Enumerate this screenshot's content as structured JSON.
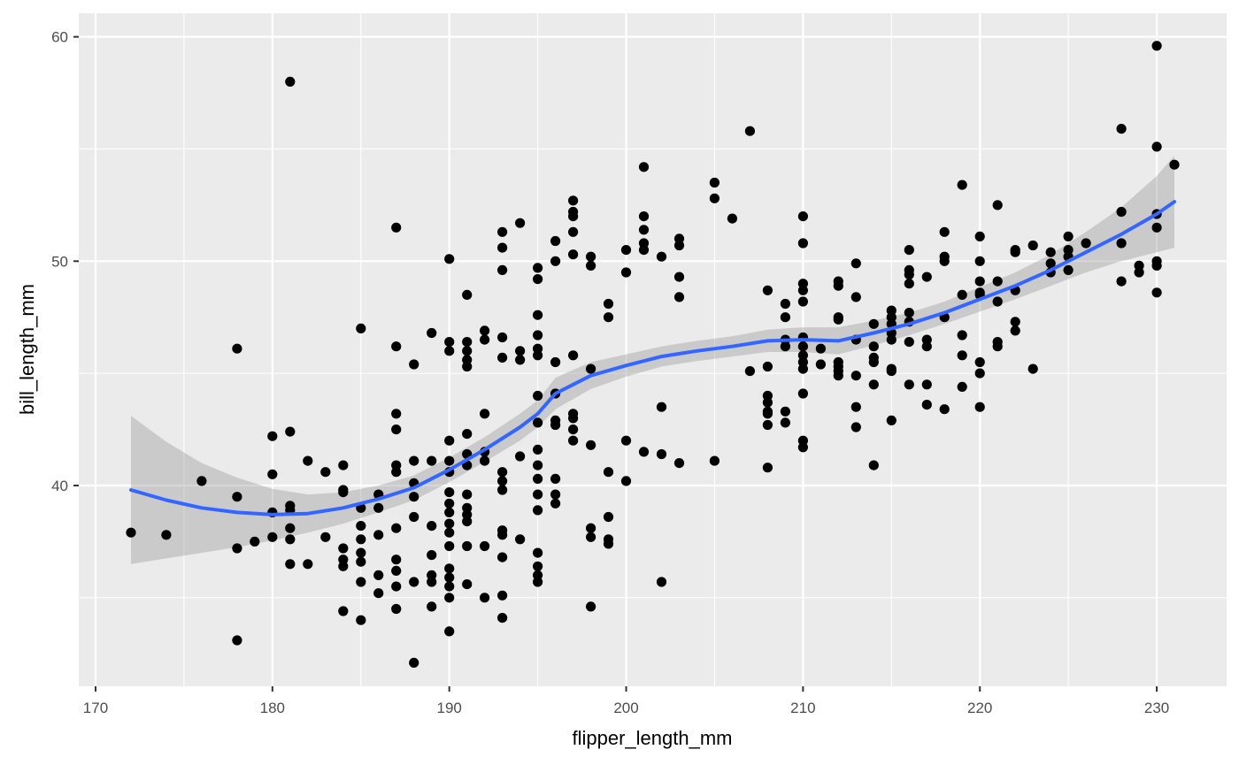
{
  "chart_data": {
    "type": "scatter",
    "xlabel": "flipper_length_mm",
    "ylabel": "bill_length_mm",
    "xlim": [
      169.05,
      233.95
    ],
    "ylim": [
      31.05,
      61.05
    ],
    "x_ticks": [
      170,
      180,
      190,
      200,
      210,
      220,
      230
    ],
    "x_tick_labels": [
      "170",
      "180",
      "190",
      "200",
      "210",
      "220",
      "230"
    ],
    "y_ticks": [
      40,
      50,
      60
    ],
    "y_tick_labels": [
      "40",
      "50",
      "60"
    ],
    "x_minor_ticks": [
      175,
      185,
      195,
      205,
      215,
      225
    ],
    "y_minor_ticks": [
      35,
      45,
      55
    ],
    "grid": true,
    "colors": {
      "panel_background": "#ebebeb",
      "grid_line": "#ffffff",
      "point": "#000000",
      "smooth_line": "#3366ff",
      "confidence_band": "#999999"
    },
    "points": [
      [
        172,
        37.9
      ],
      [
        174,
        37.8
      ],
      [
        176,
        40.2
      ],
      [
        178,
        46.1
      ],
      [
        178,
        39.5
      ],
      [
        178,
        37.2
      ],
      [
        178,
        33.1
      ],
      [
        179,
        37.5
      ],
      [
        180,
        42.2
      ],
      [
        180,
        40.5
      ],
      [
        180,
        38.8
      ],
      [
        180,
        37.7
      ],
      [
        181,
        58.0
      ],
      [
        181,
        42.4
      ],
      [
        181,
        39.1
      ],
      [
        181,
        38.9
      ],
      [
        181,
        38.1
      ],
      [
        181,
        37.6
      ],
      [
        181,
        36.5
      ],
      [
        182,
        41.1
      ],
      [
        182,
        36.5
      ],
      [
        183,
        40.6
      ],
      [
        183,
        37.7
      ],
      [
        184,
        40.9
      ],
      [
        184,
        39.8
      ],
      [
        184,
        39.7
      ],
      [
        184,
        37.2
      ],
      [
        184,
        36.7
      ],
      [
        184,
        36.4
      ],
      [
        184,
        34.4
      ],
      [
        185,
        47.0
      ],
      [
        185,
        39.0
      ],
      [
        185,
        38.2
      ],
      [
        185,
        37.6
      ],
      [
        185,
        37.0
      ],
      [
        185,
        36.6
      ],
      [
        185,
        35.7
      ],
      [
        185,
        34.0
      ],
      [
        186,
        39.6
      ],
      [
        186,
        39.0
      ],
      [
        186,
        37.8
      ],
      [
        186,
        36.0
      ],
      [
        186,
        35.2
      ],
      [
        187,
        51.5
      ],
      [
        187,
        46.2
      ],
      [
        187,
        43.2
      ],
      [
        187,
        42.5
      ],
      [
        187,
        40.9
      ],
      [
        187,
        40.6
      ],
      [
        187,
        38.1
      ],
      [
        187,
        36.7
      ],
      [
        187,
        36.2
      ],
      [
        187,
        35.5
      ],
      [
        187,
        34.5
      ],
      [
        188,
        45.4
      ],
      [
        188,
        41.1
      ],
      [
        188,
        40.1
      ],
      [
        188,
        39.5
      ],
      [
        188,
        38.6
      ],
      [
        188,
        35.7
      ],
      [
        188,
        32.1
      ],
      [
        189,
        46.8
      ],
      [
        189,
        41.1
      ],
      [
        189,
        38.2
      ],
      [
        189,
        36.9
      ],
      [
        189,
        36.0
      ],
      [
        189,
        35.7
      ],
      [
        189,
        34.6
      ],
      [
        190,
        50.1
      ],
      [
        190,
        46.4
      ],
      [
        190,
        46.0
      ],
      [
        190,
        42.0
      ],
      [
        190,
        41.1
      ],
      [
        190,
        40.6
      ],
      [
        190,
        39.7
      ],
      [
        190,
        39.2
      ],
      [
        190,
        38.8
      ],
      [
        190,
        38.3
      ],
      [
        190,
        37.9
      ],
      [
        190,
        37.3
      ],
      [
        190,
        36.3
      ],
      [
        190,
        35.9
      ],
      [
        190,
        35.5
      ],
      [
        190,
        35.0
      ],
      [
        190,
        33.5
      ],
      [
        191,
        48.5
      ],
      [
        191,
        46.4
      ],
      [
        191,
        46.0
      ],
      [
        191,
        45.6
      ],
      [
        191,
        45.3
      ],
      [
        191,
        42.3
      ],
      [
        191,
        41.4
      ],
      [
        191,
        40.9
      ],
      [
        191,
        39.6
      ],
      [
        191,
        39.0
      ],
      [
        191,
        38.7
      ],
      [
        191,
        38.4
      ],
      [
        191,
        37.3
      ],
      [
        191,
        35.6
      ],
      [
        192,
        46.9
      ],
      [
        192,
        46.5
      ],
      [
        192,
        43.2
      ],
      [
        192,
        41.5
      ],
      [
        192,
        41.1
      ],
      [
        192,
        37.3
      ],
      [
        192,
        35.0
      ],
      [
        193,
        51.3
      ],
      [
        193,
        50.6
      ],
      [
        193,
        49.6
      ],
      [
        193,
        46.6
      ],
      [
        193,
        45.7
      ],
      [
        193,
        40.6
      ],
      [
        193,
        40.2
      ],
      [
        193,
        39.8
      ],
      [
        193,
        38.0
      ],
      [
        193,
        37.8
      ],
      [
        193,
        36.8
      ],
      [
        193,
        35.1
      ],
      [
        193,
        34.1
      ],
      [
        194,
        51.7
      ],
      [
        194,
        46.0
      ],
      [
        194,
        45.6
      ],
      [
        194,
        41.3
      ],
      [
        194,
        37.6
      ],
      [
        195,
        49.7
      ],
      [
        195,
        49.2
      ],
      [
        195,
        47.6
      ],
      [
        195,
        46.7
      ],
      [
        195,
        46.1
      ],
      [
        195,
        45.8
      ],
      [
        195,
        44.0
      ],
      [
        195,
        42.8
      ],
      [
        195,
        41.6
      ],
      [
        195,
        40.9
      ],
      [
        195,
        40.3
      ],
      [
        195,
        39.6
      ],
      [
        195,
        38.9
      ],
      [
        195,
        37.0
      ],
      [
        195,
        36.4
      ],
      [
        195,
        36.0
      ],
      [
        195,
        35.7
      ],
      [
        196,
        50.9
      ],
      [
        196,
        50.0
      ],
      [
        196,
        45.5
      ],
      [
        196,
        44.1
      ],
      [
        196,
        42.9
      ],
      [
        196,
        42.7
      ],
      [
        196,
        40.3
      ],
      [
        196,
        39.6
      ],
      [
        196,
        39.2
      ],
      [
        197,
        52.7
      ],
      [
        197,
        52.2
      ],
      [
        197,
        52.0
      ],
      [
        197,
        51.3
      ],
      [
        197,
        50.3
      ],
      [
        197,
        45.8
      ],
      [
        197,
        43.2
      ],
      [
        197,
        43.0
      ],
      [
        197,
        42.5
      ],
      [
        197,
        42.0
      ],
      [
        198,
        50.2
      ],
      [
        198,
        49.8
      ],
      [
        198,
        45.2
      ],
      [
        198,
        41.8
      ],
      [
        198,
        38.1
      ],
      [
        198,
        37.7
      ],
      [
        198,
        34.6
      ],
      [
        199,
        48.1
      ],
      [
        199,
        47.5
      ],
      [
        199,
        40.6
      ],
      [
        199,
        38.6
      ],
      [
        199,
        37.6
      ],
      [
        199,
        37.4
      ],
      [
        200,
        50.5
      ],
      [
        200,
        49.5
      ],
      [
        200,
        42.0
      ],
      [
        200,
        40.2
      ],
      [
        201,
        54.2
      ],
      [
        201,
        52.0
      ],
      [
        201,
        51.4
      ],
      [
        201,
        50.8
      ],
      [
        201,
        50.5
      ],
      [
        201,
        41.5
      ],
      [
        202,
        50.2
      ],
      [
        202,
        43.5
      ],
      [
        202,
        41.4
      ],
      [
        202,
        35.7
      ],
      [
        203,
        51.0
      ],
      [
        203,
        50.7
      ],
      [
        203,
        49.3
      ],
      [
        203,
        48.4
      ],
      [
        203,
        41.0
      ],
      [
        205,
        53.5
      ],
      [
        205,
        52.8
      ],
      [
        205,
        41.1
      ],
      [
        206,
        51.9
      ],
      [
        207,
        55.8
      ],
      [
        207,
        45.1
      ],
      [
        208,
        48.7
      ],
      [
        208,
        45.3
      ],
      [
        208,
        44.0
      ],
      [
        208,
        43.7
      ],
      [
        208,
        43.3
      ],
      [
        208,
        43.2
      ],
      [
        208,
        42.7
      ],
      [
        208,
        40.8
      ],
      [
        209,
        48.1
      ],
      [
        209,
        47.5
      ],
      [
        209,
        46.5
      ],
      [
        209,
        46.2
      ],
      [
        209,
        43.3
      ],
      [
        209,
        42.8
      ],
      [
        210,
        52.0
      ],
      [
        210,
        50.8
      ],
      [
        210,
        49.0
      ],
      [
        210,
        48.7
      ],
      [
        210,
        48.2
      ],
      [
        210,
        46.6
      ],
      [
        210,
        46.2
      ],
      [
        210,
        45.8
      ],
      [
        210,
        45.5
      ],
      [
        210,
        45.2
      ],
      [
        210,
        44.1
      ],
      [
        210,
        42.0
      ],
      [
        210,
        41.7
      ],
      [
        211,
        46.1
      ],
      [
        211,
        45.4
      ],
      [
        212,
        49.1
      ],
      [
        212,
        48.9
      ],
      [
        212,
        47.5
      ],
      [
        212,
        47.4
      ],
      [
        212,
        45.5
      ],
      [
        212,
        45.3
      ],
      [
        212,
        45.1
      ],
      [
        212,
        44.9
      ],
      [
        213,
        49.9
      ],
      [
        213,
        48.4
      ],
      [
        213,
        46.5
      ],
      [
        213,
        44.9
      ],
      [
        213,
        43.5
      ],
      [
        213,
        42.6
      ],
      [
        214,
        47.2
      ],
      [
        214,
        46.2
      ],
      [
        214,
        45.7
      ],
      [
        214,
        45.5
      ],
      [
        214,
        44.5
      ],
      [
        214,
        40.9
      ],
      [
        215,
        47.8
      ],
      [
        215,
        47.5
      ],
      [
        215,
        47.2
      ],
      [
        215,
        46.8
      ],
      [
        215,
        46.5
      ],
      [
        215,
        45.2
      ],
      [
        215,
        45.1
      ],
      [
        215,
        42.9
      ],
      [
        216,
        50.5
      ],
      [
        216,
        49.6
      ],
      [
        216,
        49.4
      ],
      [
        216,
        49.0
      ],
      [
        216,
        47.7
      ],
      [
        216,
        47.3
      ],
      [
        216,
        46.4
      ],
      [
        216,
        44.5
      ],
      [
        217,
        49.3
      ],
      [
        217,
        46.5
      ],
      [
        217,
        46.2
      ],
      [
        217,
        44.5
      ],
      [
        217,
        43.6
      ],
      [
        218,
        51.3
      ],
      [
        218,
        50.2
      ],
      [
        218,
        50.0
      ],
      [
        218,
        47.5
      ],
      [
        218,
        43.4
      ],
      [
        219,
        53.4
      ],
      [
        219,
        48.5
      ],
      [
        219,
        46.7
      ],
      [
        219,
        45.8
      ],
      [
        219,
        44.4
      ],
      [
        220,
        51.1
      ],
      [
        220,
        50.0
      ],
      [
        220,
        49.1
      ],
      [
        220,
        48.6
      ],
      [
        220,
        48.5
      ],
      [
        220,
        45.5
      ],
      [
        220,
        45.0
      ],
      [
        220,
        43.5
      ],
      [
        221,
        52.5
      ],
      [
        221,
        49.1
      ],
      [
        221,
        48.2
      ],
      [
        221,
        46.4
      ],
      [
        221,
        46.2
      ],
      [
        222,
        50.5
      ],
      [
        222,
        50.4
      ],
      [
        222,
        48.7
      ],
      [
        222,
        47.3
      ],
      [
        222,
        46.9
      ],
      [
        223,
        50.7
      ],
      [
        223,
        45.2
      ],
      [
        224,
        50.4
      ],
      [
        224,
        49.9
      ],
      [
        224,
        49.5
      ],
      [
        225,
        51.1
      ],
      [
        225,
        50.5
      ],
      [
        225,
        50.2
      ],
      [
        225,
        49.6
      ],
      [
        226,
        50.8
      ],
      [
        228,
        55.9
      ],
      [
        228,
        52.2
      ],
      [
        228,
        50.8
      ],
      [
        228,
        49.1
      ],
      [
        229,
        49.8
      ],
      [
        229,
        49.5
      ],
      [
        230,
        59.6
      ],
      [
        230,
        55.1
      ],
      [
        230,
        52.1
      ],
      [
        230,
        51.5
      ],
      [
        230,
        50.0
      ],
      [
        230,
        49.8
      ],
      [
        230,
        48.6
      ],
      [
        231,
        54.3
      ]
    ],
    "smooth": {
      "method": "loess",
      "x": [
        172,
        174,
        176,
        178,
        180,
        182,
        184,
        186,
        188,
        190,
        192,
        194,
        195,
        196,
        198,
        200,
        202,
        204,
        206,
        208,
        210,
        212,
        214,
        216,
        218,
        220,
        222,
        224,
        226,
        228,
        230,
        231
      ],
      "y": [
        39.8,
        39.35,
        39.0,
        38.8,
        38.7,
        38.75,
        39.0,
        39.4,
        39.9,
        40.7,
        41.6,
        42.6,
        43.2,
        44.1,
        44.9,
        45.35,
        45.75,
        46.0,
        46.2,
        46.45,
        46.5,
        46.45,
        46.8,
        47.2,
        47.7,
        48.3,
        48.9,
        49.6,
        50.4,
        51.2,
        52.1,
        52.65
      ],
      "ymin": [
        36.5,
        36.75,
        37.0,
        37.25,
        37.55,
        37.9,
        38.3,
        38.8,
        39.35,
        40.15,
        41.05,
        42.0,
        42.6,
        43.4,
        44.3,
        44.85,
        45.3,
        45.55,
        45.75,
        45.95,
        45.95,
        45.85,
        46.25,
        46.7,
        47.2,
        47.75,
        48.3,
        48.9,
        49.5,
        50.0,
        50.4,
        50.6
      ],
      "ymax": [
        43.1,
        41.95,
        41.0,
        40.35,
        39.85,
        39.6,
        39.7,
        40.0,
        40.45,
        41.25,
        42.15,
        43.2,
        43.8,
        44.8,
        45.5,
        45.85,
        46.2,
        46.45,
        46.65,
        46.95,
        47.05,
        47.05,
        47.35,
        47.7,
        48.2,
        48.85,
        49.5,
        50.3,
        51.3,
        52.4,
        53.8,
        54.7
      ]
    }
  }
}
